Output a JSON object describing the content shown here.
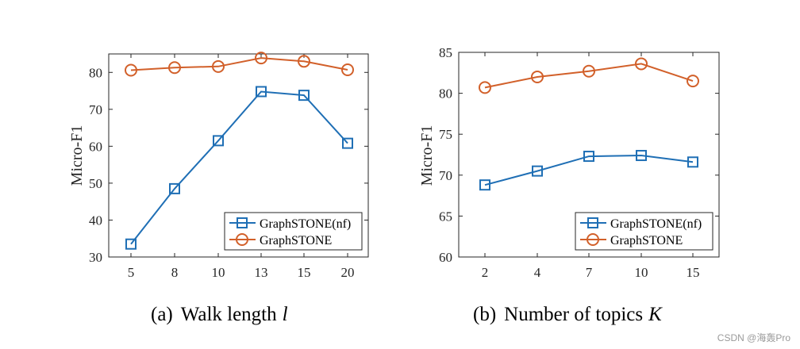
{
  "chart_data": [
    {
      "type": "line",
      "caption_label": "(a)",
      "caption_text": "Walk length",
      "caption_var": "l",
      "xlabel": "",
      "ylabel": "Micro-F1",
      "categories": [
        "5",
        "8",
        "10",
        "13",
        "15",
        "20"
      ],
      "ylim": [
        30,
        85
      ],
      "yticks": [
        30,
        40,
        50,
        60,
        70,
        80
      ],
      "series": [
        {
          "name": "GraphSTONE(nf)",
          "color": "#1f6fb5",
          "marker": "square",
          "values": [
            33.5,
            48.5,
            61.5,
            74.8,
            73.8,
            60.8
          ]
        },
        {
          "name": "GraphSTONE",
          "color": "#d2602a",
          "marker": "circle",
          "values": [
            80.6,
            81.3,
            81.6,
            83.9,
            83.0,
            80.7
          ]
        }
      ]
    },
    {
      "type": "line",
      "caption_label": "(b)",
      "caption_text": "Number of topics",
      "caption_var": "K",
      "xlabel": "",
      "ylabel": "Micro-F1",
      "categories": [
        "2",
        "4",
        "7",
        "10",
        "15"
      ],
      "ylim": [
        60,
        85
      ],
      "yticks": [
        60,
        65,
        70,
        75,
        80,
        85
      ],
      "series": [
        {
          "name": "GraphSTONE(nf)",
          "color": "#1f6fb5",
          "marker": "square",
          "values": [
            68.8,
            70.5,
            72.3,
            72.4,
            71.6
          ]
        },
        {
          "name": "GraphSTONE",
          "color": "#d2602a",
          "marker": "circle",
          "values": [
            80.7,
            82.0,
            82.7,
            83.6,
            81.5
          ]
        }
      ]
    }
  ],
  "watermark": "CSDN @海轰Pro"
}
